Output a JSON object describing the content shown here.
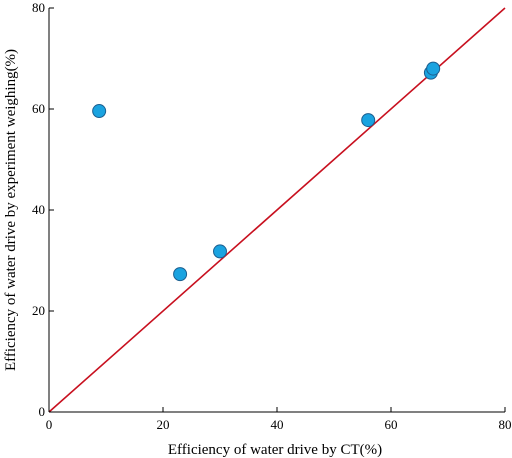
{
  "chart_data": {
    "type": "scatter",
    "xlabel": "Efficiency of water drive by CT(%)",
    "ylabel": "Efficiency of water drive by experiment weighing(%)",
    "xlim": [
      0,
      80
    ],
    "ylim": [
      0,
      80
    ],
    "x_ticks": [
      "0",
      "20",
      "40",
      "60",
      "80"
    ],
    "y_ticks": [
      "0",
      "20",
      "40",
      "60",
      "80"
    ],
    "grid": false,
    "series": [
      {
        "points": [
          {
            "x": 8.8,
            "y": 59.6
          },
          {
            "x": 23.0,
            "y": 27.3
          },
          {
            "x": 30.0,
            "y": 31.8
          },
          {
            "x": 56.0,
            "y": 57.8
          },
          {
            "x": 67.0,
            "y": 67.2
          },
          {
            "x": 67.4,
            "y": 68.0
          }
        ]
      }
    ],
    "reference_line": {
      "from": [
        0,
        0
      ],
      "to": [
        80,
        80
      ]
    },
    "colors": {
      "points": "#1aa3e0",
      "point_stroke": "#1b5e8f",
      "reference_line": "#c8101f",
      "axes": "#000000"
    }
  }
}
